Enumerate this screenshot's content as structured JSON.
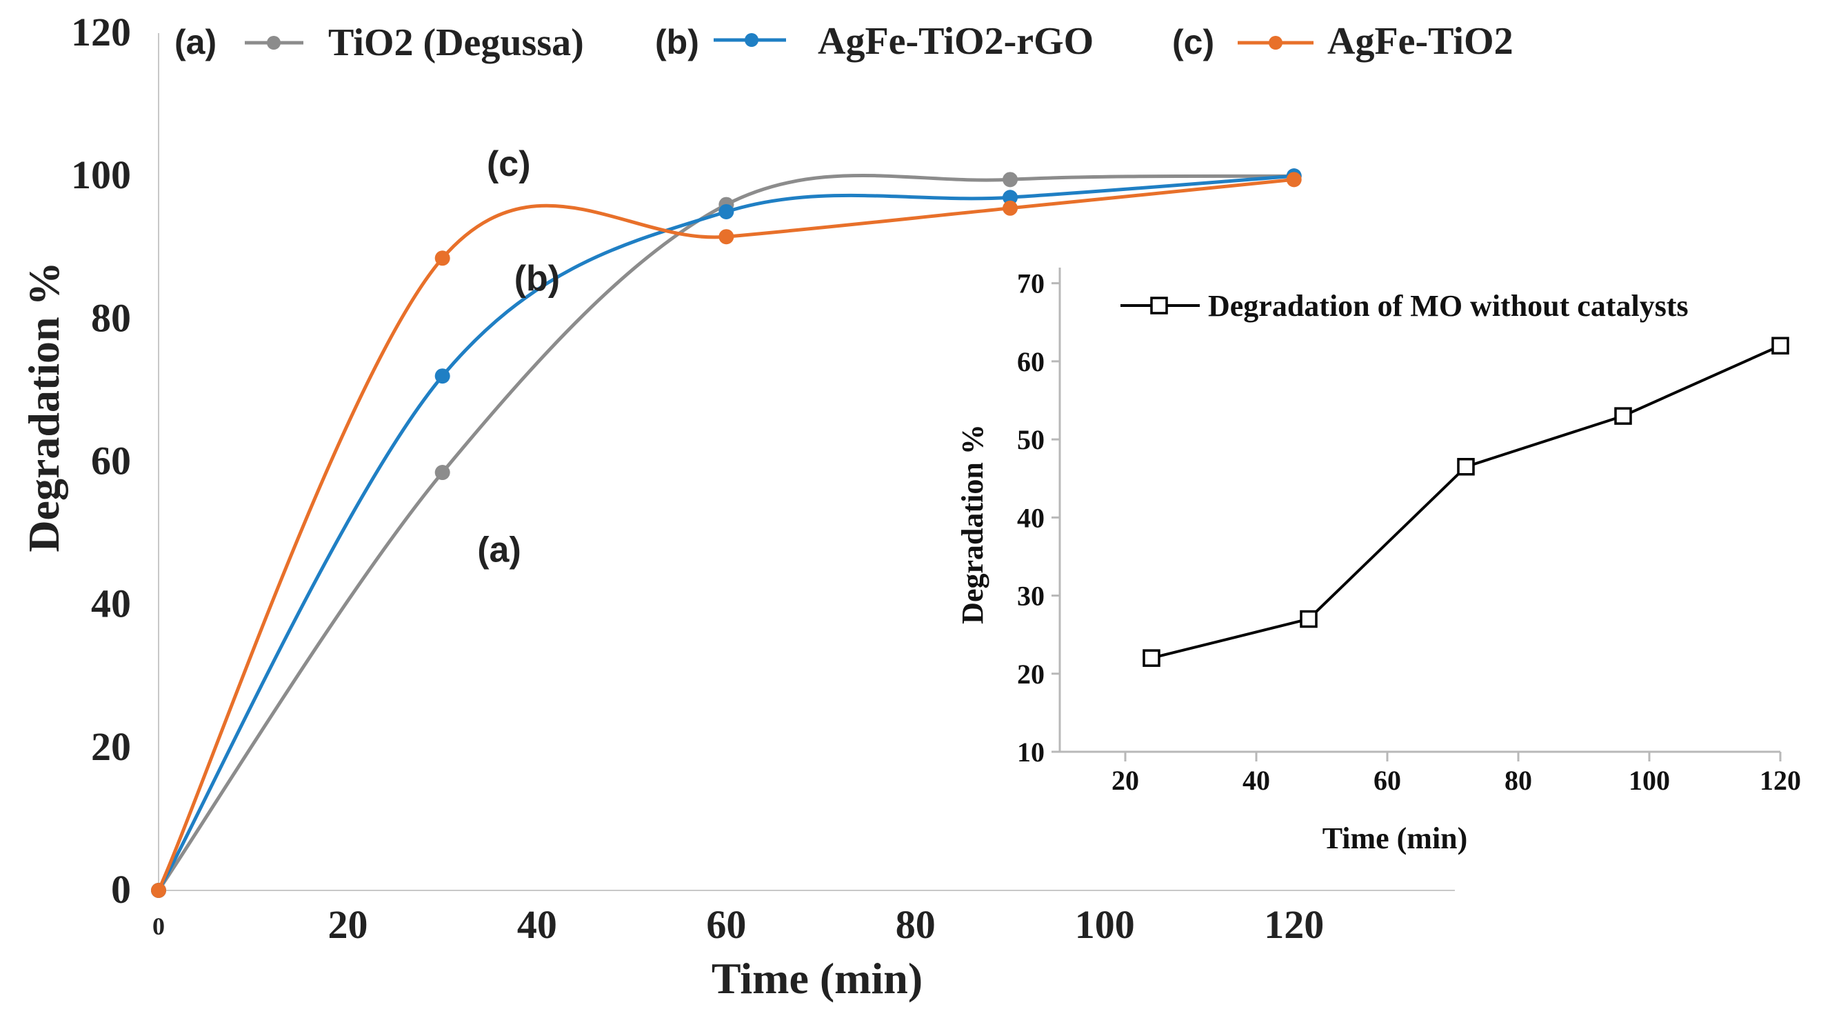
{
  "chart_data": [
    {
      "type": "line",
      "name": "main",
      "xlabel": "Time (min)",
      "ylabel": "Degradation %",
      "xlim": [
        0,
        137
      ],
      "ylim": [
        0,
        120
      ],
      "xticks": [
        0,
        20,
        40,
        60,
        80,
        100,
        120
      ],
      "yticks": [
        0,
        20,
        40,
        60,
        80,
        100,
        120
      ],
      "series": [
        {
          "key": "a",
          "legend_tag": "(a)",
          "name": "TiO2 (Degussa)",
          "curve_label": "(a)",
          "color": "#8c8c8c",
          "x": [
            0,
            30,
            60,
            90,
            120
          ],
          "y": [
            0,
            58.5,
            96,
            99.5,
            100
          ]
        },
        {
          "key": "b",
          "legend_tag": "(b)",
          "name": "AgFe-TiO2-rGO",
          "curve_label": "(b)",
          "color": "#1f7fc4",
          "x": [
            0,
            30,
            60,
            90,
            120
          ],
          "y": [
            0,
            72,
            95,
            97,
            100
          ]
        },
        {
          "key": "c",
          "legend_tag": "(c)",
          "name": "AgFe-TiO2",
          "curve_label": "(c)",
          "color": "#e8702a",
          "x": [
            0,
            30,
            60,
            90,
            120
          ],
          "y": [
            0,
            88.5,
            91.5,
            95.5,
            99.5
          ]
        }
      ]
    },
    {
      "type": "line",
      "name": "inset",
      "xlabel": "Time (min)",
      "ylabel": "Degradation %",
      "xlim": [
        10,
        120
      ],
      "ylim": [
        10,
        72
      ],
      "xticks": [
        20,
        40,
        60,
        80,
        100,
        120
      ],
      "yticks": [
        10,
        20,
        30,
        40,
        50,
        60,
        70
      ],
      "series": [
        {
          "key": "mo",
          "name": "Degradation of MO without catalysts",
          "color": "#000000",
          "marker": "open-square",
          "x": [
            24,
            48,
            72,
            96,
            120
          ],
          "y": [
            22,
            27,
            46.5,
            53,
            62
          ]
        }
      ]
    }
  ]
}
